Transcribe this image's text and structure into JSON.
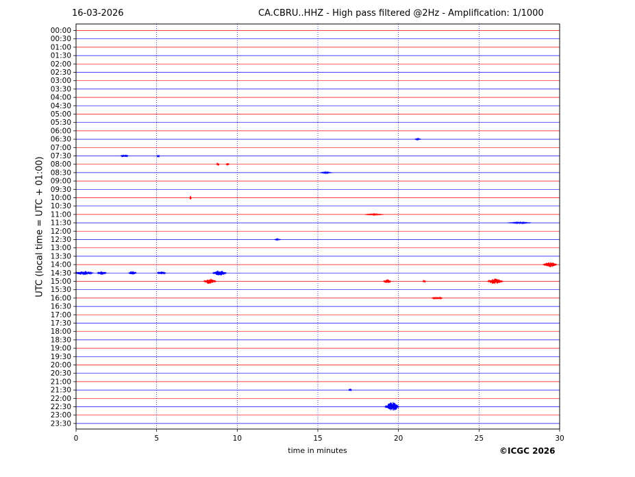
{
  "header": {
    "date": "16-03-2026",
    "title": "CA.CBRU..HHZ - High pass filtered @2Hz - Amplification: 1/1000"
  },
  "footer": {
    "copyright": "©ICGC 2026"
  },
  "chart_data": {
    "type": "line",
    "title": "CA.CBRU..HHZ - High pass filtered @2Hz - Amplification: 1/1000",
    "xlabel": "time in minutes",
    "ylabel": "UTC (local time = UTC + 01:00)",
    "xlim": [
      0,
      30
    ],
    "x_ticks": [
      0,
      5,
      10,
      15,
      20,
      25,
      30
    ],
    "grid": "vertical dotted lines every 5 minutes",
    "colors": {
      "trace_even_hour": "#ff0000",
      "trace_half_hour": "#0000ff",
      "grid": "#0000aa",
      "axis": "#000000"
    },
    "series": [
      {
        "label": "00:00",
        "events": []
      },
      {
        "label": "00:30",
        "events": []
      },
      {
        "label": "01:00",
        "events": []
      },
      {
        "label": "01:30",
        "events": []
      },
      {
        "label": "02:00",
        "events": []
      },
      {
        "label": "02:30",
        "events": []
      },
      {
        "label": "03:00",
        "events": []
      },
      {
        "label": "03:30",
        "events": []
      },
      {
        "label": "04:00",
        "events": []
      },
      {
        "label": "04:30",
        "events": []
      },
      {
        "label": "05:00",
        "events": []
      },
      {
        "label": "05:30",
        "events": []
      },
      {
        "label": "06:00",
        "events": []
      },
      {
        "label": "06:30",
        "events": [
          {
            "t": 21.2,
            "w": 0.4,
            "a": 1
          }
        ]
      },
      {
        "label": "07:00",
        "events": []
      },
      {
        "label": "07:30",
        "events": [
          {
            "t": 3.0,
            "w": 0.5,
            "a": 2
          },
          {
            "t": 5.1,
            "w": 0.2,
            "a": 2
          }
        ]
      },
      {
        "label": "08:00",
        "events": [
          {
            "t": 8.8,
            "w": 0.2,
            "a": 2
          },
          {
            "t": 9.4,
            "w": 0.2,
            "a": 2
          }
        ]
      },
      {
        "label": "08:30",
        "events": [
          {
            "t": 15.5,
            "w": 0.8,
            "a": 1
          }
        ]
      },
      {
        "label": "09:00",
        "events": []
      },
      {
        "label": "09:30",
        "events": []
      },
      {
        "label": "10:00",
        "events": [
          {
            "t": 7.1,
            "w": 0.1,
            "a": 3
          }
        ]
      },
      {
        "label": "10:30",
        "events": []
      },
      {
        "label": "11:00",
        "events": [
          {
            "t": 18.5,
            "w": 1.2,
            "a": 1
          }
        ]
      },
      {
        "label": "11:30",
        "events": [
          {
            "t": 27.5,
            "w": 1.5,
            "a": 1
          }
        ]
      },
      {
        "label": "12:00",
        "events": []
      },
      {
        "label": "12:30",
        "events": [
          {
            "t": 12.5,
            "w": 0.4,
            "a": 1
          }
        ]
      },
      {
        "label": "13:00",
        "events": []
      },
      {
        "label": "13:30",
        "events": []
      },
      {
        "label": "14:00",
        "events": [
          {
            "t": 29.4,
            "w": 0.9,
            "a": 4
          }
        ]
      },
      {
        "label": "14:30",
        "events": [
          {
            "t": 0.5,
            "w": 1.2,
            "a": 3
          },
          {
            "t": 1.6,
            "w": 0.6,
            "a": 3
          },
          {
            "t": 3.5,
            "w": 0.5,
            "a": 3
          },
          {
            "t": 5.3,
            "w": 0.6,
            "a": 2
          },
          {
            "t": 8.9,
            "w": 0.9,
            "a": 4
          }
        ]
      },
      {
        "label": "15:00",
        "events": [
          {
            "t": 8.3,
            "w": 0.8,
            "a": 4
          },
          {
            "t": 19.3,
            "w": 0.5,
            "a": 3
          },
          {
            "t": 21.6,
            "w": 0.2,
            "a": 2
          },
          {
            "t": 26.0,
            "w": 1.0,
            "a": 4
          }
        ]
      },
      {
        "label": "15:30",
        "events": []
      },
      {
        "label": "16:00",
        "events": [
          {
            "t": 22.4,
            "w": 0.7,
            "a": 2
          }
        ]
      },
      {
        "label": "16:30",
        "events": []
      },
      {
        "label": "17:00",
        "events": []
      },
      {
        "label": "17:30",
        "events": []
      },
      {
        "label": "18:00",
        "events": []
      },
      {
        "label": "18:30",
        "events": []
      },
      {
        "label": "19:00",
        "events": []
      },
      {
        "label": "19:30",
        "events": []
      },
      {
        "label": "20:00",
        "events": []
      },
      {
        "label": "20:30",
        "events": []
      },
      {
        "label": "21:00",
        "events": []
      },
      {
        "label": "21:30",
        "events": [
          {
            "t": 17.0,
            "w": 0.2,
            "a": 2
          }
        ]
      },
      {
        "label": "22:00",
        "events": []
      },
      {
        "label": "22:30",
        "events": [
          {
            "t": 19.6,
            "w": 0.9,
            "a": 7
          }
        ]
      },
      {
        "label": "23:00",
        "events": []
      },
      {
        "label": "23:30",
        "events": []
      }
    ]
  }
}
